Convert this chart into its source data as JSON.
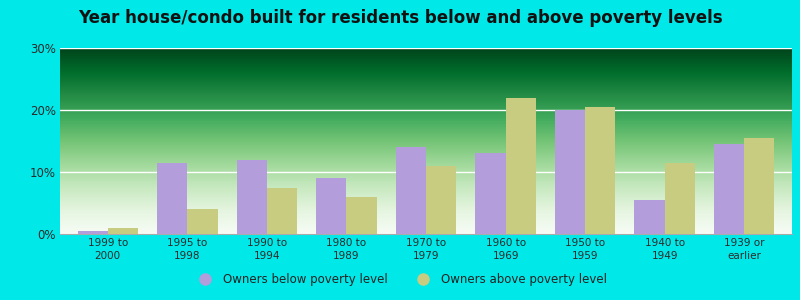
{
  "title": "Year house/condo built for residents below and above poverty levels",
  "categories": [
    "1999 to\n2000",
    "1995 to\n1998",
    "1990 to\n1994",
    "1980 to\n1989",
    "1970 to\n1979",
    "1960 to\n1969",
    "1950 to\n1959",
    "1940 to\n1949",
    "1939 or\nearlier"
  ],
  "below_poverty": [
    0.5,
    11.5,
    12.0,
    9.0,
    14.0,
    13.0,
    20.0,
    5.5,
    14.5
  ],
  "above_poverty": [
    1.0,
    4.0,
    7.5,
    6.0,
    11.0,
    22.0,
    20.5,
    11.5,
    15.5
  ],
  "below_color": "#b39ddb",
  "above_color": "#c8cc80",
  "below_label": "Owners below poverty level",
  "above_label": "Owners above poverty level",
  "ylim": [
    0,
    30
  ],
  "yticks": [
    0,
    10,
    20,
    30
  ],
  "yticklabels": [
    "0%",
    "10%",
    "20%",
    "30%"
  ],
  "outer_background": "#00e8e8",
  "title_fontsize": 12,
  "bar_width": 0.38
}
